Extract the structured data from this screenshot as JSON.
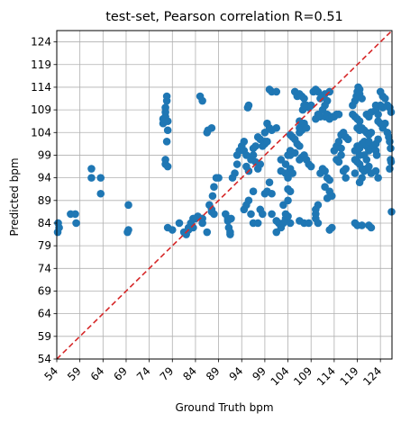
{
  "chart_data": {
    "type": "scatter",
    "title": "test-set, Pearson correlation R=0.51",
    "xlabel": "Ground Truth bpm",
    "ylabel": "Predicted bpm",
    "xlim": [
      54,
      126.5
    ],
    "ylim": [
      54,
      126.5
    ],
    "xticks": [
      54,
      59,
      64,
      69,
      74,
      79,
      84,
      89,
      94,
      99,
      104,
      109,
      114,
      119,
      124
    ],
    "yticks": [
      54,
      59,
      64,
      69,
      74,
      79,
      84,
      89,
      94,
      99,
      104,
      109,
      114,
      119,
      124
    ],
    "grid": true,
    "marker_color": "#1f77b4",
    "reference_line": {
      "style": "dashed",
      "color": "#d62728",
      "from": [
        54,
        54
      ],
      "to": [
        126.5,
        126.5
      ]
    },
    "points": [
      [
        54.2,
        82
      ],
      [
        54.5,
        83
      ],
      [
        54.3,
        84
      ],
      [
        57,
        86
      ],
      [
        58,
        86
      ],
      [
        58.2,
        84
      ],
      [
        61.5,
        96
      ],
      [
        61.5,
        94
      ],
      [
        63.5,
        94
      ],
      [
        63.5,
        90.5
      ],
      [
        69.5,
        88
      ],
      [
        69.5,
        82.5
      ],
      [
        69.3,
        82
      ],
      [
        77,
        106
      ],
      [
        77,
        107
      ],
      [
        77.5,
        107.5
      ],
      [
        77.5,
        108.5
      ],
      [
        77.8,
        111
      ],
      [
        77.8,
        112
      ],
      [
        77.5,
        109.5
      ],
      [
        78,
        106.5
      ],
      [
        78,
        104.5
      ],
      [
        77.8,
        102
      ],
      [
        77.5,
        98
      ],
      [
        77.5,
        97
      ],
      [
        78,
        96.5
      ],
      [
        78,
        83
      ],
      [
        79,
        82.5
      ],
      [
        80.5,
        84
      ],
      [
        81.5,
        82
      ],
      [
        82,
        81.5
      ],
      [
        82.5,
        83
      ],
      [
        83,
        84
      ],
      [
        83.5,
        85
      ],
      [
        84,
        85
      ],
      [
        84.5,
        85.5
      ],
      [
        85.5,
        85
      ],
      [
        85.5,
        84
      ],
      [
        83.5,
        83
      ],
      [
        82.5,
        82.5
      ],
      [
        85,
        112
      ],
      [
        85.5,
        111
      ],
      [
        86.5,
        104
      ],
      [
        86.7,
        104.5
      ],
      [
        87.5,
        105
      ],
      [
        86.5,
        82
      ],
      [
        87,
        88
      ],
      [
        87.5,
        87
      ],
      [
        88,
        86
      ],
      [
        87.5,
        86.5
      ],
      [
        87.7,
        90
      ],
      [
        88,
        92
      ],
      [
        88.5,
        94
      ],
      [
        89,
        94
      ],
      [
        90.5,
        86
      ],
      [
        91,
        85
      ],
      [
        91,
        84.5
      ],
      [
        91.2,
        83
      ],
      [
        91.5,
        82
      ],
      [
        91.5,
        81.5
      ],
      [
        91.7,
        85
      ],
      [
        92,
        94
      ],
      [
        92.5,
        95
      ],
      [
        93,
        99
      ],
      [
        93,
        97
      ],
      [
        93.5,
        100
      ],
      [
        94,
        101
      ],
      [
        94.5,
        102
      ],
      [
        94.5,
        100
      ],
      [
        95,
        99
      ],
      [
        95,
        96.5
      ],
      [
        95.5,
        95.5
      ],
      [
        96,
        98
      ],
      [
        96.5,
        99
      ],
      [
        96.5,
        100.5
      ],
      [
        97,
        101
      ],
      [
        97,
        97.5
      ],
      [
        97.5,
        103
      ],
      [
        98,
        102.5
      ],
      [
        98.5,
        101
      ],
      [
        99,
        102
      ],
      [
        99,
        101.5
      ],
      [
        98,
        97
      ],
      [
        97.5,
        96
      ],
      [
        94.5,
        87
      ],
      [
        95,
        88
      ],
      [
        95.5,
        89
      ],
      [
        96,
        86
      ],
      [
        96.5,
        91
      ],
      [
        96.5,
        84
      ],
      [
        97.5,
        84
      ],
      [
        98,
        87
      ],
      [
        98.5,
        86
      ],
      [
        99,
        90.5
      ],
      [
        99.5,
        91
      ],
      [
        100,
        93
      ],
      [
        100.5,
        90.5
      ],
      [
        100.5,
        86
      ],
      [
        95.3,
        109.5
      ],
      [
        95.5,
        110
      ],
      [
        99,
        104
      ],
      [
        99.5,
        106
      ],
      [
        100,
        105
      ],
      [
        100.5,
        104.5
      ],
      [
        101.5,
        105
      ],
      [
        99.5,
        102
      ],
      [
        100,
        113.5
      ],
      [
        100.5,
        113
      ],
      [
        101.5,
        113
      ],
      [
        101.5,
        82
      ],
      [
        102,
        84
      ],
      [
        102.5,
        83
      ],
      [
        101.5,
        84.5
      ],
      [
        103,
        84
      ],
      [
        103.5,
        85
      ],
      [
        103.5,
        86
      ],
      [
        104,
        85.5
      ],
      [
        104.5,
        84
      ],
      [
        102.5,
        98
      ],
      [
        103.5,
        97
      ],
      [
        104,
        99
      ],
      [
        104.5,
        96
      ],
      [
        105,
        95
      ],
      [
        103.5,
        95
      ],
      [
        102.5,
        95.5
      ],
      [
        104.5,
        99
      ],
      [
        104.5,
        100
      ],
      [
        103,
        88
      ],
      [
        104,
        89
      ],
      [
        104.5,
        91
      ],
      [
        104,
        94
      ],
      [
        104,
        91.5
      ],
      [
        104.5,
        103.5
      ],
      [
        105,
        103
      ],
      [
        105.5,
        102.5
      ],
      [
        106,
        101.5
      ],
      [
        106.5,
        101
      ],
      [
        105.5,
        99.5
      ],
      [
        106.5,
        98
      ],
      [
        107,
        98.5
      ],
      [
        107.5,
        99
      ],
      [
        106.5,
        104
      ],
      [
        106.5,
        105
      ],
      [
        107,
        105.5
      ],
      [
        107,
        104.5
      ],
      [
        107.5,
        106
      ],
      [
        108,
        105
      ],
      [
        106.5,
        106.5
      ],
      [
        105.5,
        113
      ],
      [
        106,
        112
      ],
      [
        106.5,
        112.5
      ],
      [
        107,
        112
      ],
      [
        107.5,
        111.5
      ],
      [
        107.2,
        109
      ],
      [
        107.5,
        110
      ],
      [
        108,
        110
      ],
      [
        108.5,
        109.5
      ],
      [
        109,
        110
      ],
      [
        109.5,
        113
      ],
      [
        110,
        113.5
      ],
      [
        110.5,
        113
      ],
      [
        111,
        111.5
      ],
      [
        111.5,
        112
      ],
      [
        112,
        112.5
      ],
      [
        112.5,
        111
      ],
      [
        113,
        113
      ],
      [
        106.5,
        84.5
      ],
      [
        107.5,
        84
      ],
      [
        108.5,
        84
      ],
      [
        110,
        85
      ],
      [
        110,
        86
      ],
      [
        110.5,
        84
      ],
      [
        110,
        87
      ],
      [
        110.5,
        88
      ],
      [
        108,
        98
      ],
      [
        108.5,
        97
      ],
      [
        109,
        96.5
      ],
      [
        110,
        107
      ],
      [
        110.5,
        108
      ],
      [
        111,
        107.5
      ],
      [
        112,
        107.5
      ],
      [
        112.5,
        108
      ],
      [
        113,
        107
      ],
      [
        113.5,
        107.5
      ],
      [
        114,
        107.5
      ],
      [
        111.5,
        109
      ],
      [
        112,
        110
      ],
      [
        114.5,
        108
      ],
      [
        115,
        108
      ],
      [
        111,
        95
      ],
      [
        111.5,
        96
      ],
      [
        112,
        95.5
      ],
      [
        112.5,
        94
      ],
      [
        113,
        93.5
      ],
      [
        112,
        92
      ],
      [
        113,
        91
      ],
      [
        112.5,
        89.5
      ],
      [
        113.5,
        90
      ],
      [
        113,
        82.5
      ],
      [
        113.5,
        83
      ],
      [
        114,
        100
      ],
      [
        114.5,
        101
      ],
      [
        115,
        102
      ],
      [
        115.5,
        100.5
      ],
      [
        115.5,
        99
      ],
      [
        114.5,
        98
      ],
      [
        115,
        97.5
      ],
      [
        116.5,
        96
      ],
      [
        116.5,
        94
      ],
      [
        116,
        95.5
      ],
      [
        115.5,
        103.5
      ],
      [
        116,
        104
      ],
      [
        116.5,
        103
      ],
      [
        117,
        102.5
      ],
      [
        118,
        110
      ],
      [
        118.5,
        111
      ],
      [
        118.8,
        112
      ],
      [
        119,
        113
      ],
      [
        119.2,
        114
      ],
      [
        119.5,
        113.5
      ],
      [
        119.5,
        112.5
      ],
      [
        120,
        111.5
      ],
      [
        118,
        108
      ],
      [
        118.5,
        107.5
      ],
      [
        119,
        107
      ],
      [
        119.5,
        106.5
      ],
      [
        119,
        105
      ],
      [
        119.5,
        104.5
      ],
      [
        120,
        105
      ],
      [
        120.5,
        104.5
      ],
      [
        121,
        104
      ],
      [
        121.5,
        103.5
      ],
      [
        122,
        104
      ],
      [
        118.5,
        100
      ],
      [
        119,
        101
      ],
      [
        119.5,
        100.5
      ],
      [
        120,
        101.5
      ],
      [
        120.5,
        102
      ],
      [
        121,
        101
      ],
      [
        121.5,
        102
      ],
      [
        121.5,
        100
      ],
      [
        122,
        100.5
      ],
      [
        122.5,
        101
      ],
      [
        123,
        100
      ],
      [
        123,
        101.5
      ],
      [
        123.5,
        102.5
      ],
      [
        123.2,
        99
      ],
      [
        121,
        98
      ],
      [
        120.5,
        99
      ],
      [
        119.5,
        99
      ],
      [
        118.5,
        98
      ],
      [
        119,
        97.5
      ],
      [
        119.5,
        97
      ],
      [
        120,
        96
      ],
      [
        120.5,
        95.5
      ],
      [
        121,
        96
      ],
      [
        121.5,
        96.5
      ],
      [
        122,
        95
      ],
      [
        123,
        95.5
      ],
      [
        123.5,
        94
      ],
      [
        119.5,
        93
      ],
      [
        120,
        94
      ],
      [
        118.5,
        95
      ],
      [
        118.5,
        84
      ],
      [
        119,
        83.5
      ],
      [
        120,
        83.5
      ],
      [
        121.5,
        83.5
      ],
      [
        122,
        83
      ],
      [
        121,
        108
      ],
      [
        121.5,
        107.5
      ],
      [
        122,
        108.5
      ],
      [
        123,
        109
      ],
      [
        123.5,
        108
      ],
      [
        123,
        110
      ],
      [
        124,
        110
      ],
      [
        124.5,
        109.5
      ],
      [
        124.5,
        112
      ],
      [
        124,
        113
      ],
      [
        125,
        111.5
      ],
      [
        125.5,
        110
      ],
      [
        126,
        109.5
      ],
      [
        126.3,
        108.5
      ],
      [
        125.5,
        104
      ],
      [
        125.8,
        103
      ],
      [
        126,
        102
      ],
      [
        126.2,
        100.5
      ],
      [
        124.5,
        105
      ],
      [
        125,
        106
      ],
      [
        123.5,
        106.5
      ],
      [
        124,
        106
      ],
      [
        126,
        96
      ],
      [
        126.2,
        98
      ],
      [
        126.3,
        97.5
      ],
      [
        126.4,
        86.5
      ]
    ]
  }
}
